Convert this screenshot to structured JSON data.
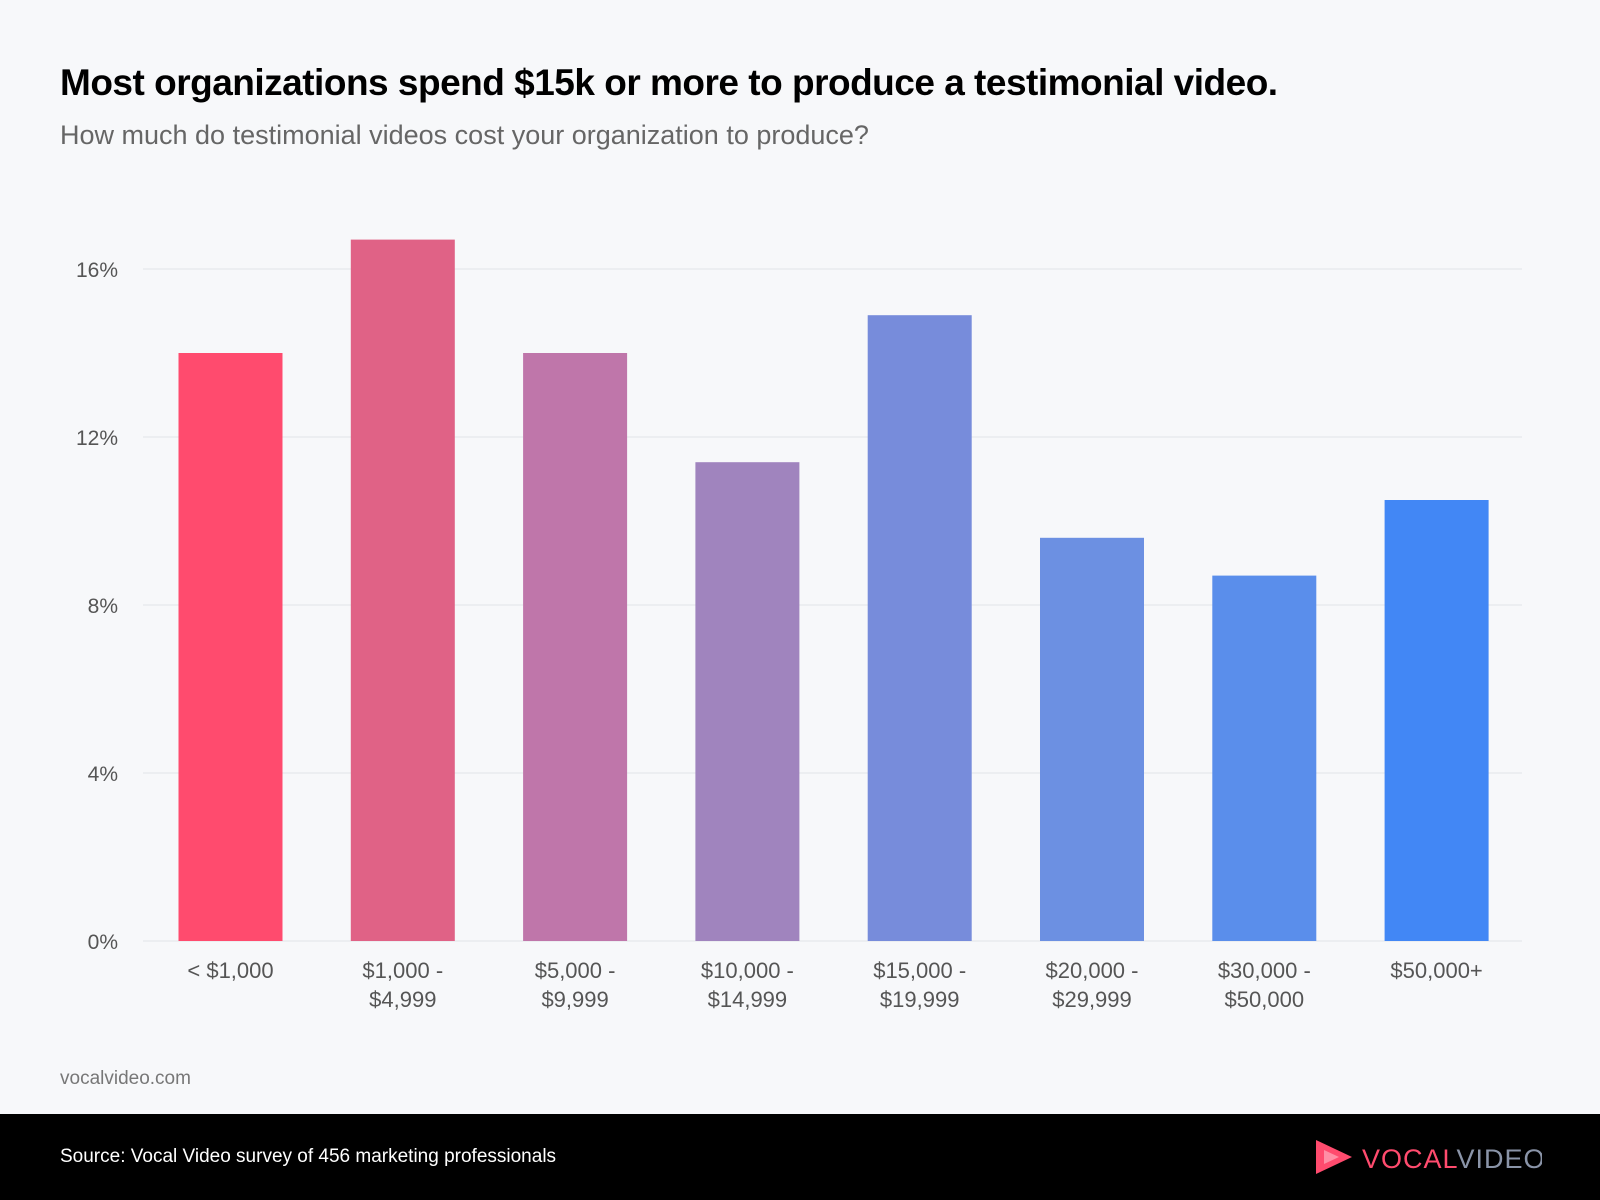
{
  "title": "Most organizations spend $15k or more to produce a testimonial video.",
  "subtitle": "How much do testimonial videos cost your organization to produce?",
  "site": "vocalvideo.com",
  "footer": {
    "source": "Source: Vocal Video survey of 456 marketing professionals",
    "logo_text": "VOCALVIDEO"
  },
  "chart_data": {
    "type": "bar",
    "title": "Most organizations spend $15k or more to produce a testimonial video.",
    "xlabel": "",
    "ylabel": "",
    "categories": [
      [
        "< $1,000"
      ],
      [
        "$1,000 -",
        "$4,999"
      ],
      [
        "$5,000 -",
        "$9,999"
      ],
      [
        "$10,000 -",
        "$14,999"
      ],
      [
        "$15,000 -",
        "$19,999"
      ],
      [
        "$20,000 -",
        "$29,999"
      ],
      [
        "$30,000 -",
        "$50,000"
      ],
      [
        "$50,000+"
      ]
    ],
    "values": [
      14.0,
      16.7,
      14.0,
      11.4,
      14.9,
      9.6,
      8.7,
      10.5
    ],
    "colors": [
      "#ff4b6e",
      "#e06286",
      "#bf76aa",
      "#a084be",
      "#778cdb",
      "#6c90e2",
      "#5a8eeb",
      "#4287f5"
    ],
    "ylim": [
      0,
      16
    ],
    "yticks": [
      0,
      4,
      8,
      12,
      16
    ],
    "ytick_labels": [
      "0%",
      "4%",
      "8%",
      "12%",
      "16%"
    ],
    "grid": true,
    "legend": "none"
  }
}
